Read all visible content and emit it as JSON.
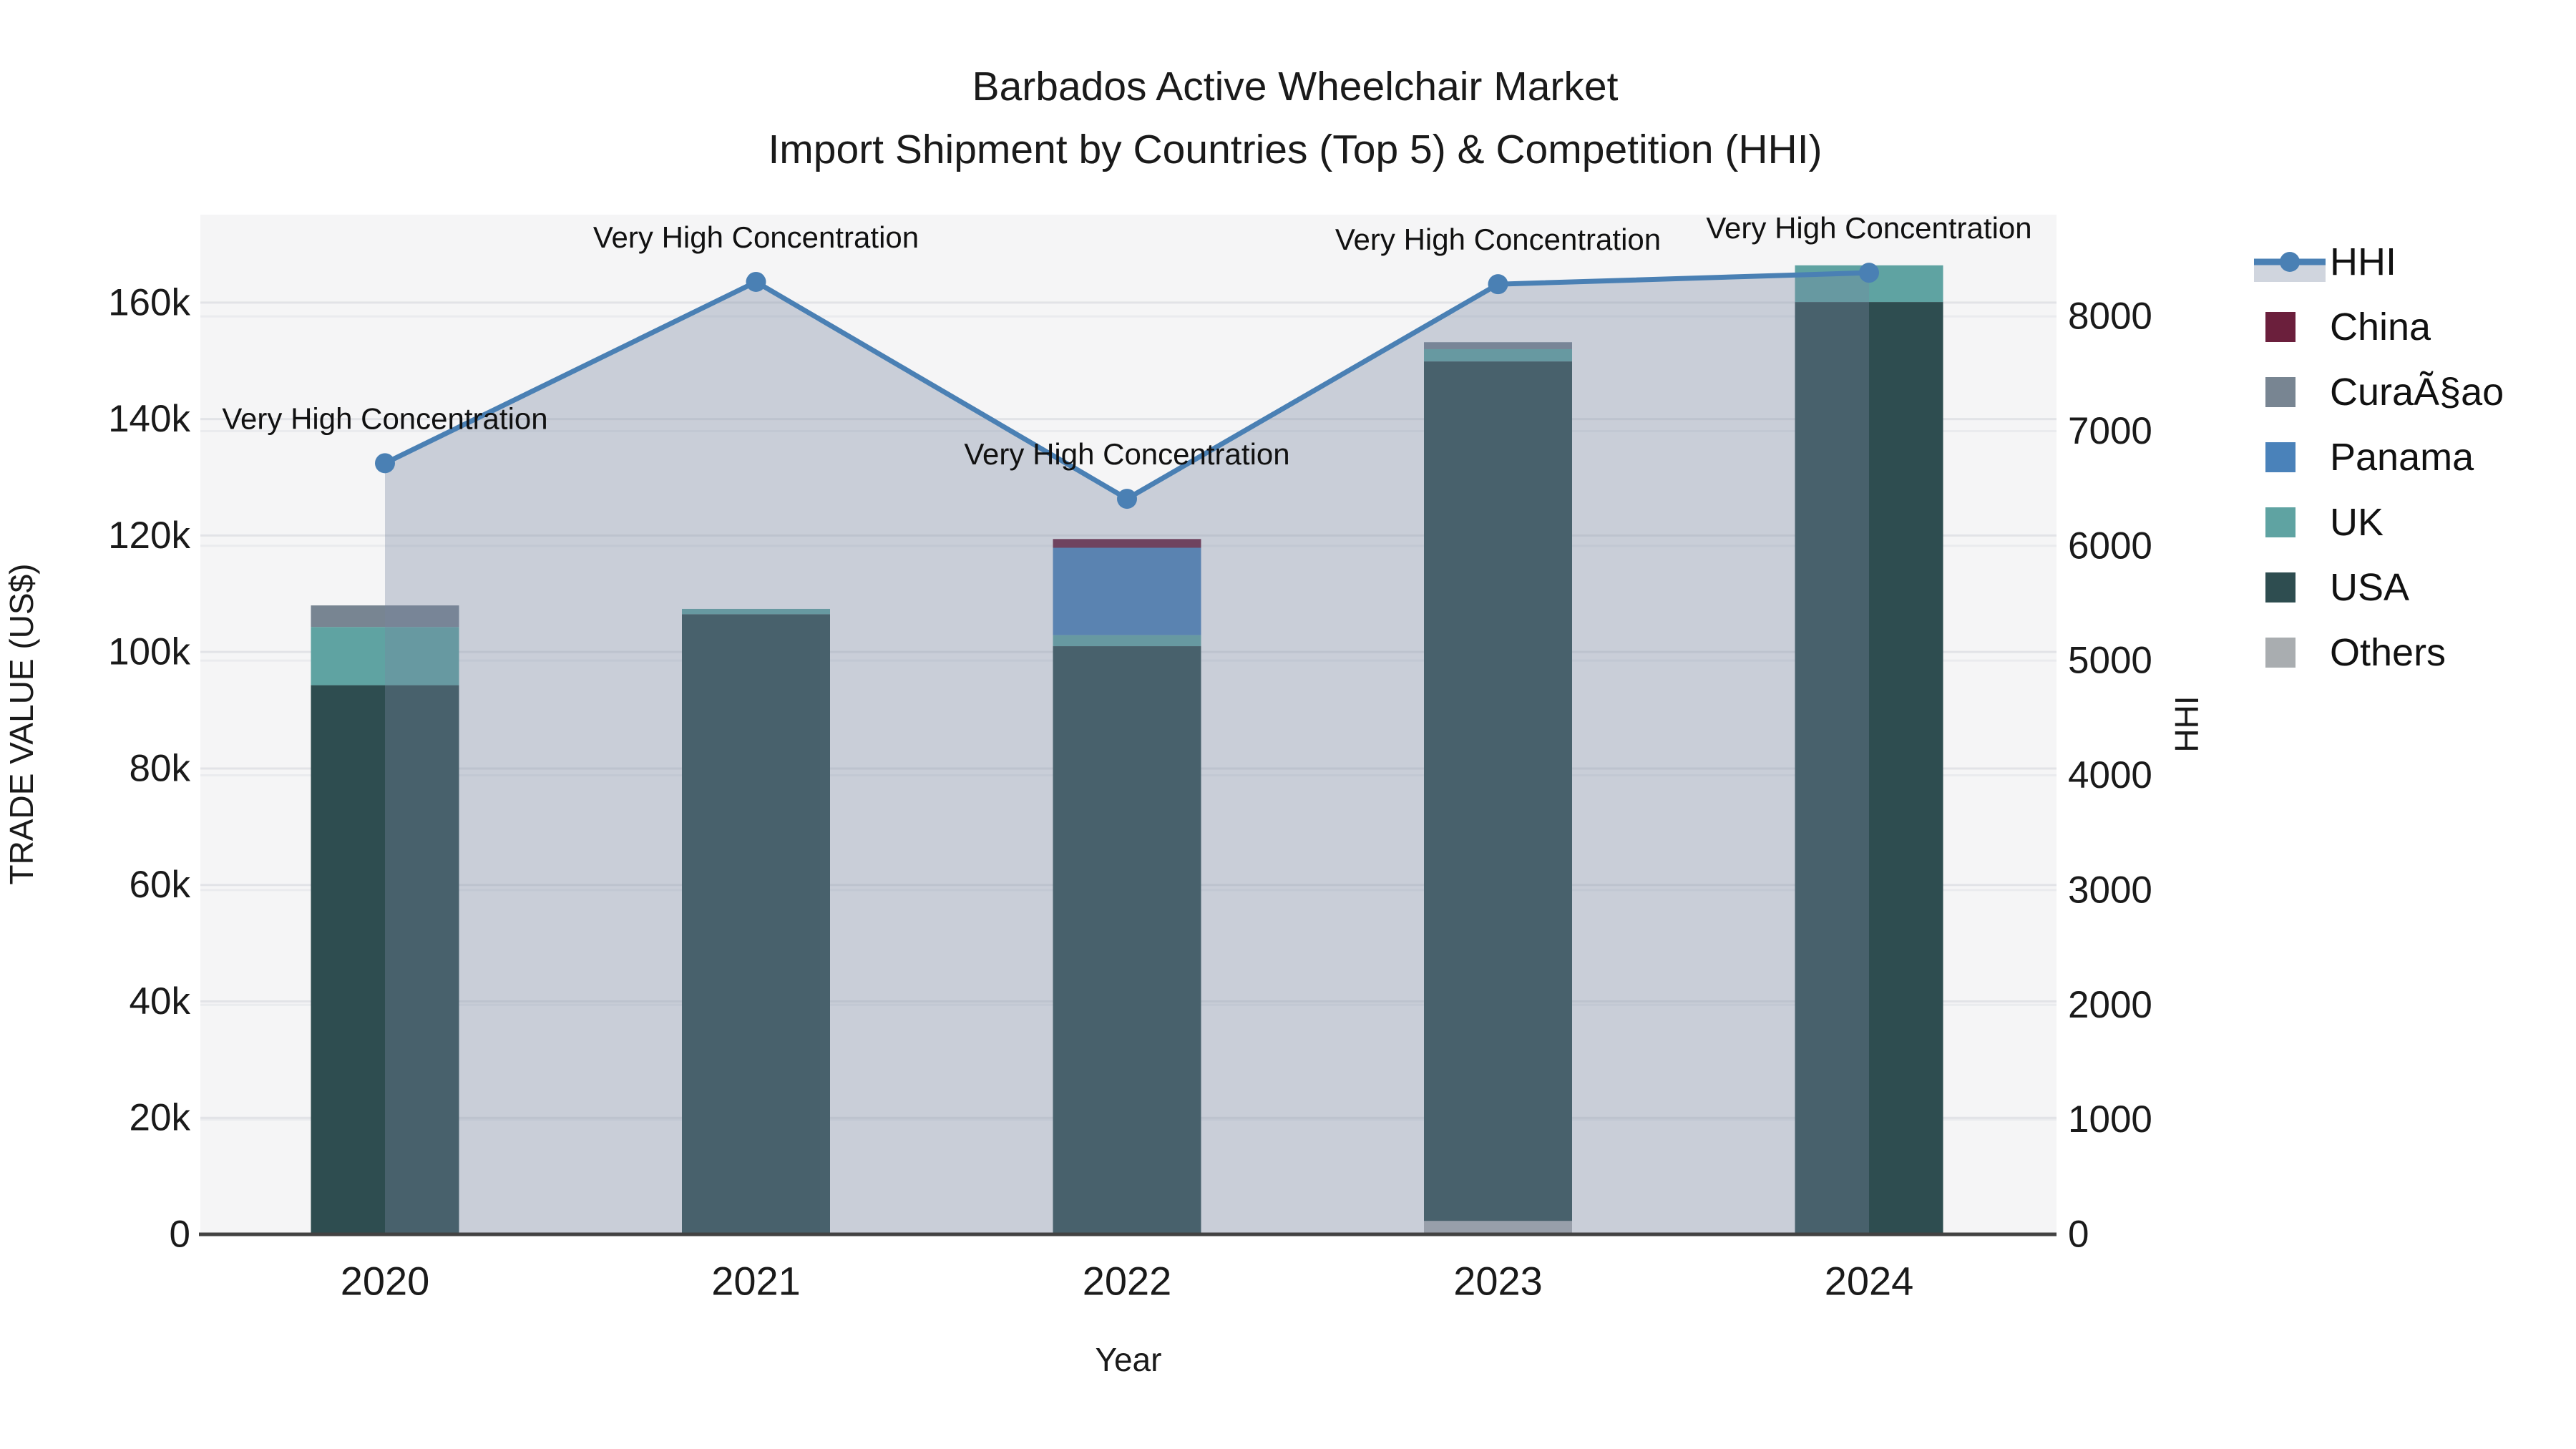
{
  "title": {
    "line1": "Barbados Active Wheelchair Market",
    "line2": "Import Shipment by Countries (Top 5) & Competition (HHI)"
  },
  "axes": {
    "x": {
      "label": "Year"
    },
    "left": {
      "label": "TRADE VALUE (US$)",
      "tick_labels": [
        "0",
        "20k",
        "40k",
        "60k",
        "80k",
        "100k",
        "120k",
        "140k",
        "160k"
      ],
      "tick_values": [
        0,
        20000,
        40000,
        60000,
        80000,
        100000,
        120000,
        140000,
        160000
      ],
      "max": 175100
    },
    "right": {
      "label": "HHI",
      "tick_labels": [
        "0",
        "1000",
        "2000",
        "3000",
        "4000",
        "5000",
        "6000",
        "7000",
        "8000"
      ],
      "tick_values": [
        0,
        1000,
        2000,
        3000,
        4000,
        5000,
        6000,
        7000,
        8000
      ],
      "max": 8886
    }
  },
  "legend": {
    "items": [
      {
        "label": "HHI",
        "type": "line",
        "color": "#4a80b4",
        "band": "rgba(119,136,161,0.35)"
      },
      {
        "label": "China",
        "type": "swatch",
        "color": "#6b1f3c"
      },
      {
        "label": "CuraÃ§ao",
        "type": "swatch",
        "color": "#788592"
      },
      {
        "label": "Panama",
        "type": "swatch",
        "color": "#4a82ba"
      },
      {
        "label": "UK",
        "type": "swatch",
        "color": "#5fa3a2"
      },
      {
        "label": "USA",
        "type": "swatch",
        "color": "#2e4d50"
      },
      {
        "label": "Others",
        "type": "swatch",
        "color": "#a9adb0"
      }
    ]
  },
  "chart_data": {
    "type": "combo: stacked bar (left axis) + line with area fill (right axis)",
    "categories": [
      "2020",
      "2021",
      "2022",
      "2023",
      "2024"
    ],
    "xlabel": "Year",
    "ylabel_left": "TRADE VALUE (US$)",
    "ylabel_right": "HHI",
    "left_ylim": [
      0,
      175100
    ],
    "right_ylim": [
      0,
      8886
    ],
    "grid": true,
    "legend_position": "right",
    "series": [
      {
        "name": "China",
        "color": "#6b1f3c",
        "values": [
          0,
          0,
          1500,
          0,
          0
        ]
      },
      {
        "name": "CuraÃ§ao",
        "color": "#788592",
        "values": [
          3700,
          0,
          0,
          1200,
          0
        ]
      },
      {
        "name": "Panama",
        "color": "#4a82ba",
        "values": [
          0,
          0,
          15000,
          0,
          0
        ]
      },
      {
        "name": "UK",
        "color": "#5fa3a2",
        "values": [
          10000,
          900,
          1900,
          2100,
          6300
        ]
      },
      {
        "name": "USA",
        "color": "#2e4d50",
        "values": [
          94300,
          106500,
          101000,
          147600,
          160100
        ]
      },
      {
        "name": "Others",
        "color": "#a9adb0",
        "values": [
          0,
          0,
          0,
          2300,
          0
        ]
      }
    ],
    "stack_order_bottom_to_top": [
      "Others",
      "USA",
      "UK",
      "Panama",
      "CuraÃ§ao",
      "China"
    ],
    "bar_totals": [
      108000,
      107400,
      119400,
      153200,
      166400
    ],
    "hhi_line": {
      "name": "HHI",
      "axis": "right",
      "color": "#4a80b4",
      "area_fill": "rgba(119,136,161,0.35)",
      "values": [
        6720,
        8300,
        6410,
        8280,
        8380
      ]
    },
    "annotations": [
      {
        "text": "Very High Concentration",
        "category": "2020"
      },
      {
        "text": "Very High Concentration",
        "category": "2021"
      },
      {
        "text": "Very High Concentration",
        "category": "2022"
      },
      {
        "text": "Very High Concentration",
        "category": "2023"
      },
      {
        "text": "Very High Concentration",
        "category": "2024"
      }
    ]
  }
}
